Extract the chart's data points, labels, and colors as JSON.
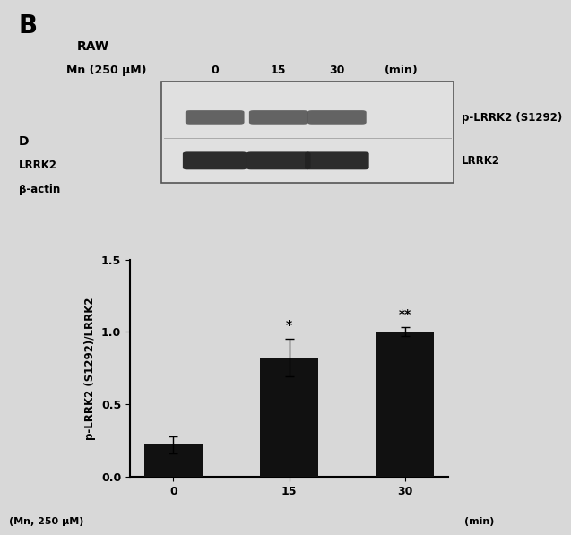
{
  "title_letter": "B",
  "blot_label_line1": "RAW",
  "blot_label_line2": "Mn (250 μM)",
  "blot_timepoints": [
    "0",
    "15",
    "30"
  ],
  "blot_time_unit": "(min)",
  "blot_band1_label": "p-LRRK2 (S1292)",
  "blot_band2_label": "LRRK2",
  "left_labels": [
    "D",
    "LRRK2",
    "β-actin"
  ],
  "bar_values": [
    0.22,
    0.82,
    1.0
  ],
  "bar_errors": [
    0.06,
    0.13,
    0.03
  ],
  "bar_color": "#111111",
  "bar_categories": [
    "0",
    "15",
    "30"
  ],
  "ylabel": "p-LRRK2 (S1292)/LRRK2",
  "ylim": [
    0,
    1.5
  ],
  "yticks": [
    0.0,
    0.5,
    1.0,
    1.5
  ],
  "ytick_labels": [
    "0.0",
    "0.5",
    "1.0",
    "1.5"
  ],
  "significance": [
    "",
    "*",
    "**"
  ],
  "fig_bg": "#d8d8d8"
}
